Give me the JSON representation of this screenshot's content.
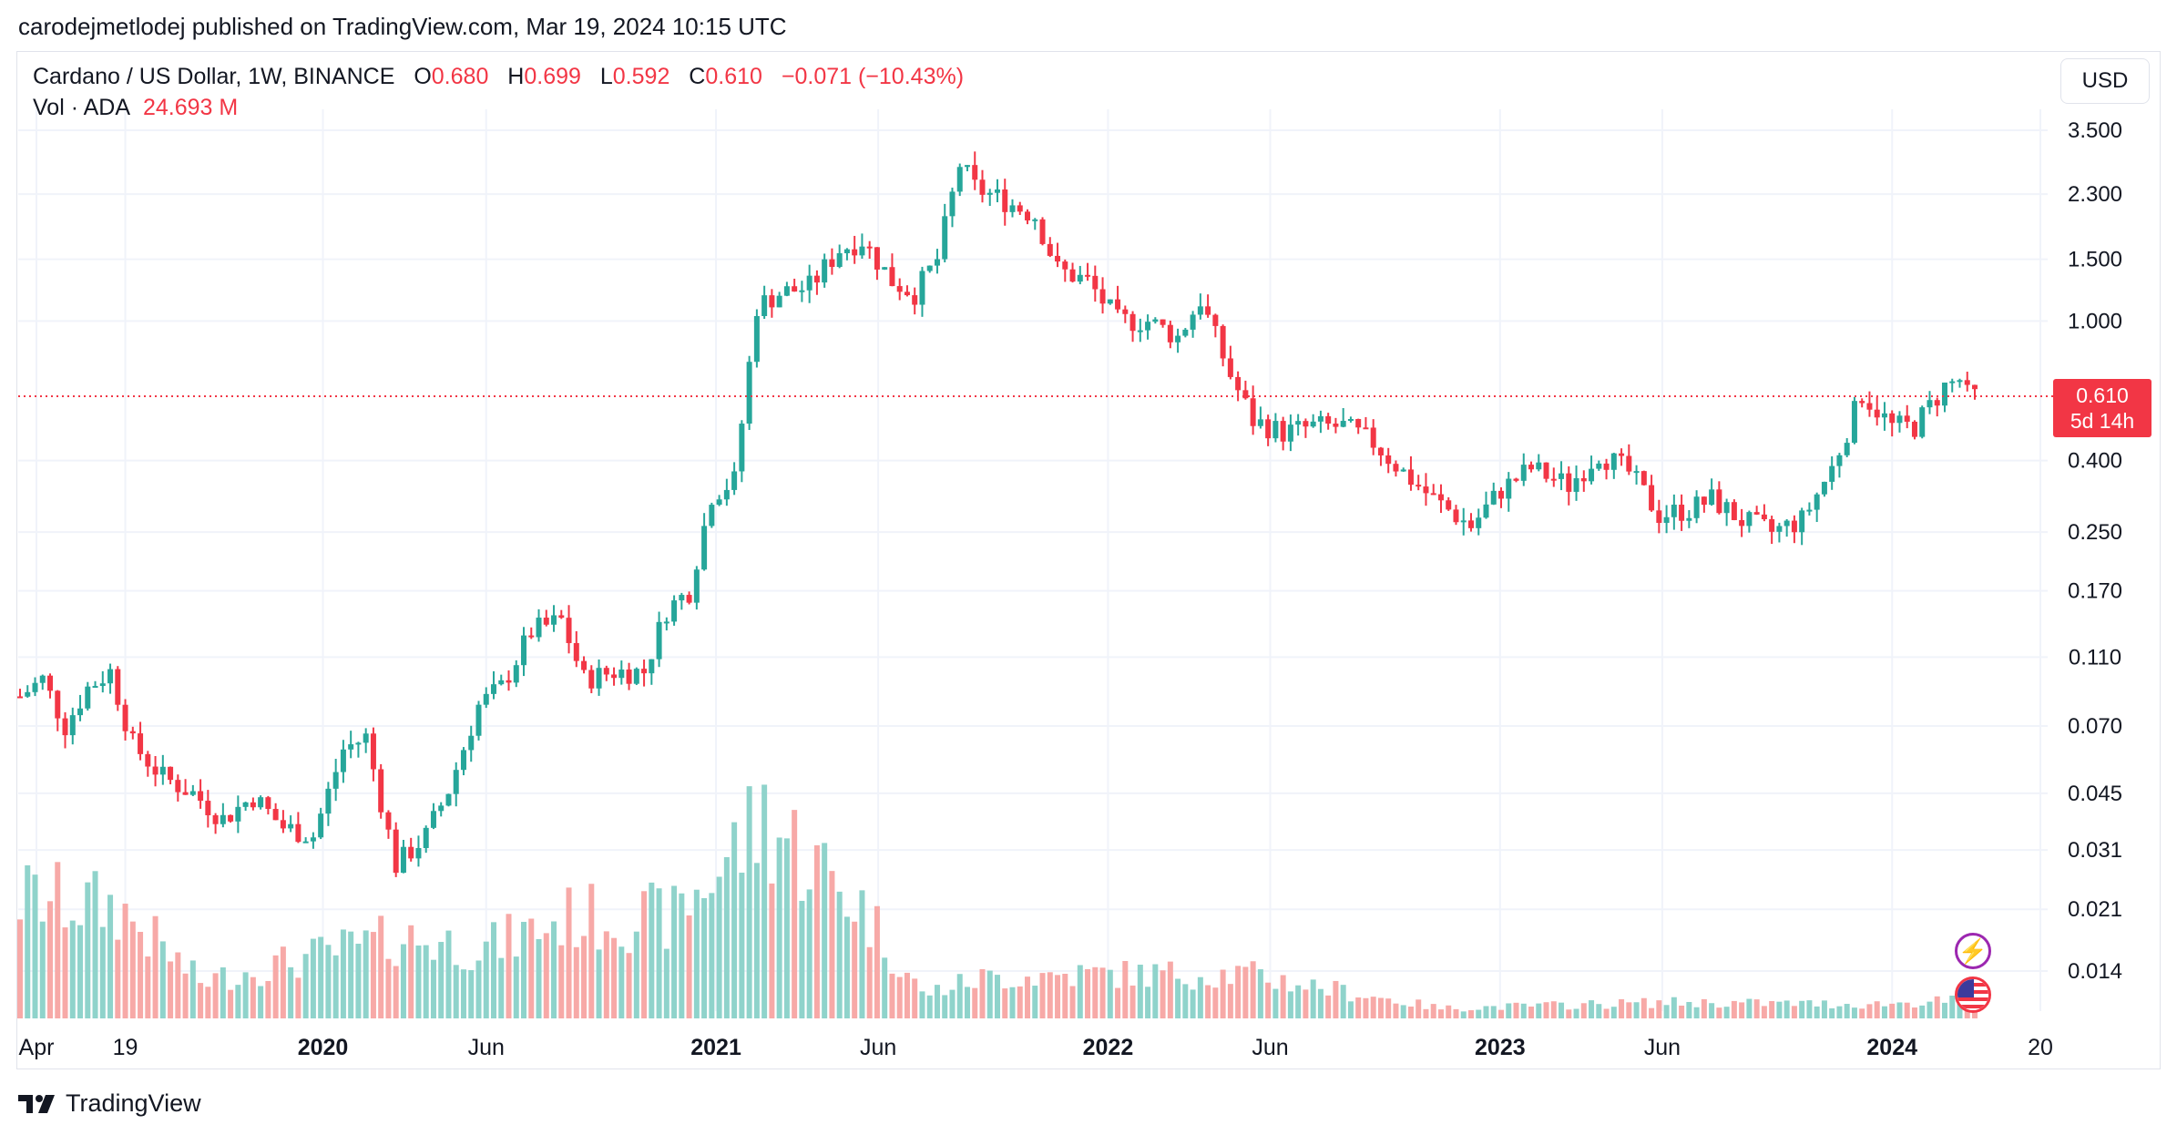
{
  "publisher_line": "carodejmetlodej published on TradingView.com, Mar 19, 2024 10:15 UTC",
  "legend": {
    "symbol": "Cardano / US Dollar, 1W, BINANCE",
    "open_label": "O",
    "open": "0.680",
    "high_label": "H",
    "high": "0.699",
    "low_label": "L",
    "low": "0.592",
    "close_label": "C",
    "close": "0.610",
    "change": "−0.071 (−10.43%)",
    "volume_label": "Vol · ADA",
    "volume": "24.693 M"
  },
  "currency_button": "USD",
  "last_price": {
    "value": "0.610",
    "countdown": "5d 14h"
  },
  "brand": "TradingView",
  "icons": {
    "flash": "flash-icon",
    "flag": "us-flag-icon",
    "brand": "tradingview-logo-icon"
  },
  "colors": {
    "up": "#26a69a",
    "down": "#f23645",
    "up_volume": "#8fd3cb",
    "down_volume": "#f7a9a7",
    "grid": "#f0f3fa"
  },
  "chart_data": {
    "type": "candlestick",
    "interval": "1W",
    "y_scale": "log",
    "y_ticks": [
      "3.500",
      "2.300",
      "1.500",
      "1.000",
      "0.400",
      "0.250",
      "0.170",
      "0.110",
      "0.070",
      "0.045",
      "0.031",
      "0.021",
      "0.014"
    ],
    "x_ticks": [
      "Apr",
      "19",
      "2020",
      "Jun",
      "2021",
      "Jun",
      "2022",
      "Jun",
      "2023",
      "Jun",
      "2024",
      "20"
    ],
    "x_ticks_bold": [
      "2020",
      "2021",
      "2022",
      "2023",
      "2024"
    ],
    "ylim": [
      0.0115,
      4.0
    ],
    "anchors": [
      [
        "2019-04-01",
        0.085
      ],
      [
        "2019-04-22",
        0.095
      ],
      [
        "2019-05-13",
        0.07
      ],
      [
        "2019-06-03",
        0.09
      ],
      [
        "2019-06-24",
        0.1
      ],
      [
        "2019-07-15",
        0.062
      ],
      [
        "2019-08-12",
        0.05
      ],
      [
        "2019-09-09",
        0.045
      ],
      [
        "2019-10-07",
        0.038
      ],
      [
        "2019-11-04",
        0.044
      ],
      [
        "2019-12-02",
        0.036
      ],
      [
        "2019-12-30",
        0.034
      ],
      [
        "2020-01-27",
        0.06
      ],
      [
        "2020-02-17",
        0.065
      ],
      [
        "2020-03-16",
        0.028
      ],
      [
        "2020-04-13",
        0.034
      ],
      [
        "2020-05-04",
        0.046
      ],
      [
        "2020-06-01",
        0.08
      ],
      [
        "2020-06-22",
        0.09
      ],
      [
        "2020-07-20",
        0.13
      ],
      [
        "2020-08-17",
        0.14
      ],
      [
        "2020-09-07",
        0.095
      ],
      [
        "2020-10-05",
        0.1
      ],
      [
        "2020-11-02",
        0.1
      ],
      [
        "2020-11-23",
        0.15
      ],
      [
        "2020-12-14",
        0.17
      ],
      [
        "2021-01-04",
        0.32
      ],
      [
        "2021-01-25",
        0.35
      ],
      [
        "2021-02-15",
        1.1
      ],
      [
        "2021-03-08",
        1.2
      ],
      [
        "2021-04-05",
        1.25
      ],
      [
        "2021-05-03",
        1.6
      ],
      [
        "2021-05-24",
        1.7
      ],
      [
        "2021-06-21",
        1.3
      ],
      [
        "2021-07-12",
        1.2
      ],
      [
        "2021-08-02",
        1.5
      ],
      [
        "2021-08-23",
        2.8
      ],
      [
        "2021-09-06",
        2.4
      ],
      [
        "2021-10-04",
        2.2
      ],
      [
        "2021-11-01",
        2.0
      ],
      [
        "2021-11-22",
        1.4
      ],
      [
        "2021-12-20",
        1.3
      ],
      [
        "2022-01-17",
        1.0
      ],
      [
        "2022-02-14",
        1.0
      ],
      [
        "2022-03-14",
        0.9
      ],
      [
        "2022-04-04",
        1.15
      ],
      [
        "2022-05-02",
        0.7
      ],
      [
        "2022-05-23",
        0.52
      ],
      [
        "2022-06-20",
        0.48
      ],
      [
        "2022-07-18",
        0.5
      ],
      [
        "2022-08-15",
        0.5
      ],
      [
        "2022-09-12",
        0.45
      ],
      [
        "2022-10-10",
        0.37
      ],
      [
        "2022-11-07",
        0.31
      ],
      [
        "2022-12-12",
        0.26
      ],
      [
        "2023-01-09",
        0.33
      ],
      [
        "2023-02-06",
        0.38
      ],
      [
        "2023-03-13",
        0.34
      ],
      [
        "2023-04-10",
        0.42
      ],
      [
        "2023-05-08",
        0.37
      ],
      [
        "2023-06-05",
        0.28
      ],
      [
        "2023-07-03",
        0.29
      ],
      [
        "2023-07-24",
        0.31
      ],
      [
        "2023-08-21",
        0.27
      ],
      [
        "2023-09-18",
        0.25
      ],
      [
        "2023-10-16",
        0.27
      ],
      [
        "2023-11-13",
        0.38
      ],
      [
        "2023-12-11",
        0.62
      ],
      [
        "2024-01-08",
        0.5
      ],
      [
        "2024-01-29",
        0.5
      ],
      [
        "2024-02-26",
        0.65
      ],
      [
        "2024-03-11",
        0.68
      ],
      [
        "2024-03-18",
        0.61
      ]
    ],
    "volume_peaks": [
      [
        "2019-04-01",
        0.6
      ],
      [
        "2019-06-24",
        0.55
      ],
      [
        "2019-09-09",
        0.18
      ],
      [
        "2020-01-27",
        0.35
      ],
      [
        "2020-03-16",
        0.4
      ],
      [
        "2020-06-01",
        0.35
      ],
      [
        "2020-08-17",
        0.5
      ],
      [
        "2020-11-23",
        0.5
      ],
      [
        "2021-01-04",
        0.75
      ],
      [
        "2021-02-15",
        1.0
      ],
      [
        "2021-05-17",
        0.55
      ],
      [
        "2021-07-12",
        0.12
      ],
      [
        "2021-09-06",
        0.2
      ],
      [
        "2021-12-06",
        0.22
      ],
      [
        "2022-05-09",
        0.22
      ],
      [
        "2022-11-07",
        0.05
      ],
      [
        "2023-06-05",
        0.08
      ],
      [
        "2023-12-11",
        0.07
      ],
      [
        "2024-03-11",
        0.09
      ]
    ],
    "date_range": [
      "2019-03-25",
      "2024-03-18"
    ]
  }
}
